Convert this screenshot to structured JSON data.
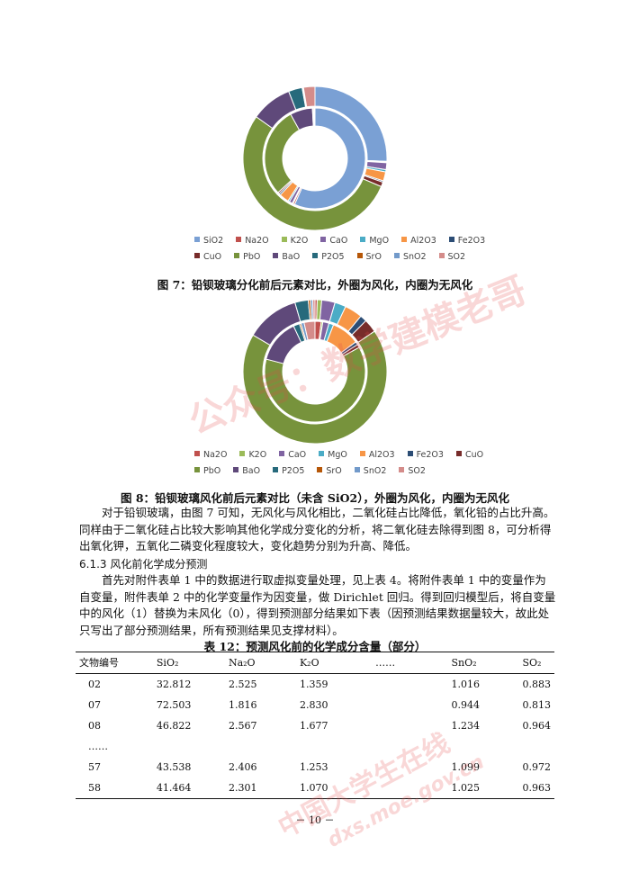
{
  "figure7": {
    "caption": "图 7：铅钡玻璃分化前后元素对比，外圈为风化，内圈为无风化",
    "legend_row1": [
      "SiO2",
      "Na2O",
      "K2O",
      "CaO",
      "MgO",
      "Al2O3",
      "Fe2O3"
    ],
    "legend_row2": [
      "CuO",
      "PbO",
      "BaO",
      "P2O5",
      "SrO",
      "SnO2",
      "SO2"
    ]
  },
  "figure8": {
    "caption": "图 8：铅钡玻璃风化前后元素对比（未含 SiO2），外圈为风化，内圈为无风化",
    "legend_row1": [
      "Na2O",
      "K2O",
      "CaO",
      "MgO",
      "Al2O3",
      "Fe2O3",
      "CuO"
    ],
    "legend_row2": [
      "PbO",
      "BaO",
      "P2O5",
      "SrO",
      "SnO2",
      "SO2"
    ]
  },
  "colors": {
    "SiO2": "#7aa0d4",
    "Na2O": "#c0504d",
    "K2O": "#9bbb59",
    "CaO": "#8064a2",
    "MgO": "#4bacc6",
    "Al2O3": "#f79646",
    "Fe2O3": "#2c4d75",
    "CuO": "#772c2a",
    "PbO": "#77933c",
    "BaO": "#5f497a",
    "P2O5": "#276a7c",
    "SrO": "#b65708",
    "SnO2": "#729aca",
    "SO2": "#d48c8a"
  },
  "chart_data": [
    {
      "type": "pie",
      "variant": "doughnut-two-ring",
      "categories": [
        "SiO2",
        "Na2O",
        "K2O",
        "CaO",
        "MgO",
        "Al2O3",
        "Fe2O3",
        "CuO",
        "PbO",
        "BaO",
        "P2O5",
        "SrO",
        "SnO2",
        "SO2"
      ],
      "series": [
        {
          "values": [
            25,
            0.1,
            0.2,
            1.5,
            0.5,
            2,
            0.3,
            1,
            52,
            9,
            3,
            0.2,
            0.1,
            2.5
          ]
        },
        {
          "values": [
            55,
            0.5,
            0.3,
            1,
            0.5,
            3,
            0.5,
            0.5,
            28,
            7,
            0.2,
            0.3,
            0.2,
            0.1
          ]
        }
      ]
    },
    {
      "type": "pie",
      "variant": "doughnut-two-ring",
      "categories": [
        "Na2O",
        "K2O",
        "CaO",
        "MgO",
        "Al2O3",
        "Fe2O3",
        "CuO",
        "PbO",
        "BaO",
        "P2O5",
        "SrO",
        "SnO2",
        "SO2"
      ],
      "series": [
        {
          "values": [
            0.5,
            1,
            3,
            2.5,
            4,
            1.5,
            3,
            68,
            12,
            3,
            0.5,
            0.5,
            0.5
          ]
        },
        {
          "values": [
            2,
            0.5,
            2,
            1.5,
            9,
            1,
            1,
            62,
            14,
            2,
            0.5,
            1,
            3.5
          ]
        }
      ]
    }
  ],
  "body": {
    "para1": "对于铅钡玻璃，由图 7 可知，无风化与风化相比，二氧化硅占比降低，氧化铅的占比升高。同样由于二氧化硅占比较大影响其他化学成分变化的分析，将二氧化硅去除得到图 8，可分析得出氧化钾，五氧化二磷变化程度较大，变化趋势分别为升高、降低。",
    "heading": "6.1.3 风化前化学成分预测",
    "para2": "首先对附件表单 1 中的数据进行取虚拟变量处理，见上表 4。将附件表单 1 中的变量作为自变量，附件表单 2 中的化学变量作为因变量，做 Dirichlet 回归。得到回归模型后，将自变量中的风化（1）替换为未风化（0），得到预测部分结果如下表（因预测结果数据量较大，故此处只写出了部分预测结果，所有预测结果见支撑材料）。"
  },
  "table": {
    "title": "表 12：预测风化前的化学成分含量（部分）",
    "headers": [
      "文物编号",
      "SiO₂",
      "Na₂O",
      "K₂O",
      "……",
      "SnO₂",
      "SO₂"
    ],
    "rows": [
      [
        "02",
        "32.812",
        "2.525",
        "1.359",
        "",
        "1.016",
        "0.883"
      ],
      [
        "07",
        "72.503",
        "1.816",
        "2.830",
        "",
        "0.944",
        "0.813"
      ],
      [
        "08",
        "46.822",
        "2.567",
        "1.677",
        "",
        "1.234",
        "0.964"
      ],
      [
        "……",
        "",
        "",
        "",
        "",
        "",
        ""
      ],
      [
        "57",
        "43.538",
        "2.406",
        "1.253",
        "",
        "1.099",
        "0.972"
      ],
      [
        "58",
        "41.464",
        "2.301",
        "1.070",
        "",
        "1.025",
        "0.963"
      ]
    ]
  },
  "page_number": "－ 10 －",
  "watermark": {
    "text1": "公众号：数学建模老哥",
    "text2": "中国大学生在线",
    "text3": "dxs.moe.gov.cn"
  }
}
